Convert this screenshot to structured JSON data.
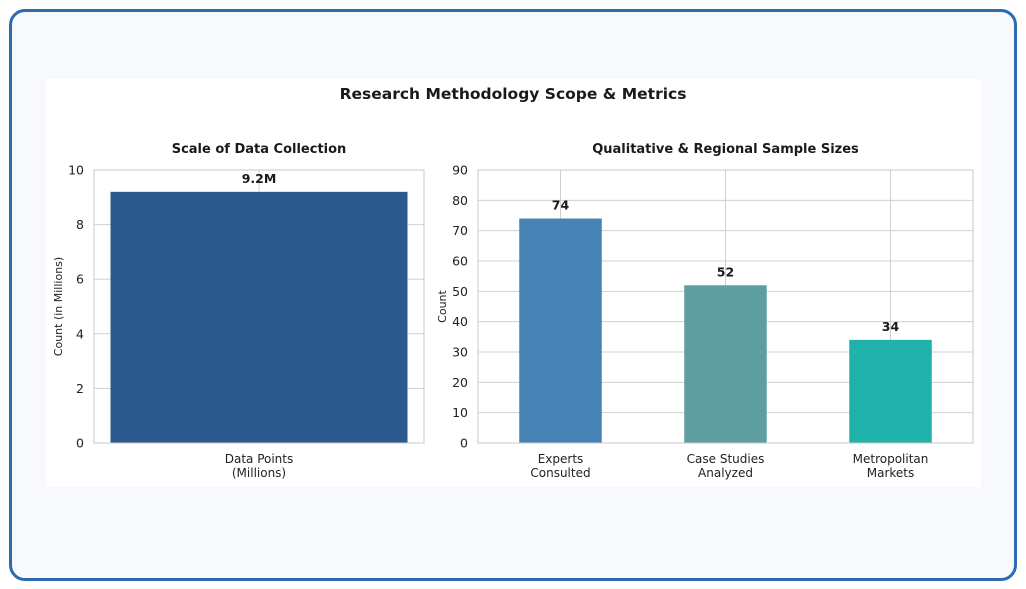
{
  "suptitle": "Research Methodology Scope & Metrics",
  "chart_data": [
    {
      "type": "bar",
      "title": "Scale of Data Collection",
      "xlabel": "",
      "ylabel": "Count (in Millions)",
      "categories": [
        "Data Points\n(Millions)"
      ],
      "values": [
        9.2
      ],
      "value_labels": [
        "9.2M"
      ],
      "ylim": [
        0,
        10
      ],
      "yticks": [
        0,
        2,
        4,
        6,
        8,
        10
      ],
      "colors": [
        "#2d5a8e"
      ],
      "grid": true
    },
    {
      "type": "bar",
      "title": "Qualitative & Regional Sample Sizes",
      "xlabel": "",
      "ylabel": "Count",
      "categories": [
        "Experts\nConsulted",
        "Case Studies\nAnalyzed",
        "Metropolitan\nMarkets"
      ],
      "values": [
        74,
        52,
        34
      ],
      "value_labels": [
        "74",
        "52",
        "34"
      ],
      "ylim": [
        0,
        90
      ],
      "yticks": [
        0,
        10,
        20,
        30,
        40,
        50,
        60,
        70,
        80,
        90
      ],
      "colors": [
        "#4682b4",
        "#5f9ea0",
        "#20b2aa"
      ],
      "grid": true
    }
  ]
}
